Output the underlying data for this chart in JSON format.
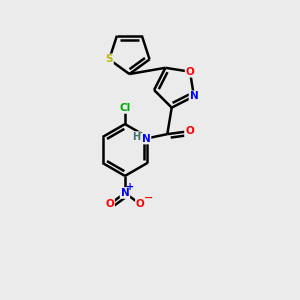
{
  "background_color": "#ebebeb",
  "atom_colors": {
    "S": "#b8b800",
    "O": "#ff0000",
    "N": "#0000ff",
    "Cl": "#00aa00",
    "C": "#000000",
    "H": "#407070"
  },
  "bond_color": "#000000",
  "bond_width": 1.8
}
